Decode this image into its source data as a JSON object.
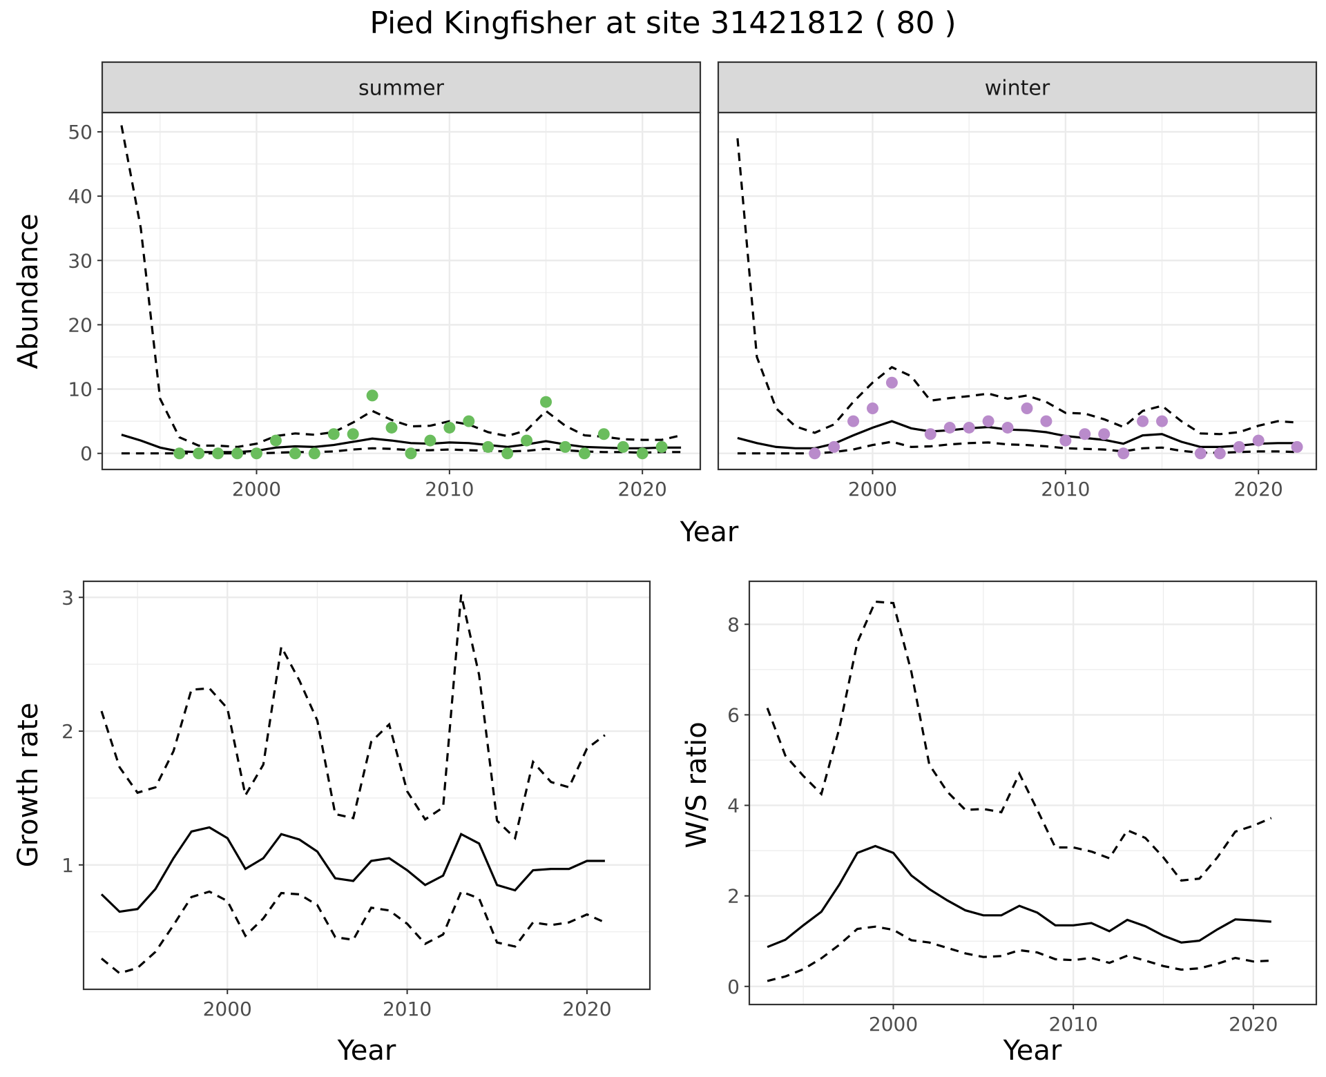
{
  "title": "Pied Kingfisher at site 31421812 ( 80 )",
  "colors": {
    "summer_points": "#6ABD5D",
    "winter_points": "#B98BCB",
    "line": "#000000",
    "strip_fill": "#D9D9D9",
    "grid": "#EBEBEB"
  },
  "chart_data": [
    {
      "id": "abundance",
      "type": "line",
      "facets": [
        "summer",
        "winter"
      ],
      "xlabel": "Year",
      "ylabel": "Abundance",
      "xlim": [
        1992,
        2023
      ],
      "ylim": [
        -2.5,
        53
      ],
      "x_ticks": [
        2000,
        2010,
        2020
      ],
      "y_ticks": [
        0,
        10,
        20,
        30,
        40,
        50
      ],
      "grid": true,
      "panels": [
        {
          "facet": "summer",
          "years": [
            1993,
            1994,
            1995,
            1996,
            1997,
            1998,
            1999,
            2000,
            2001,
            2002,
            2003,
            2004,
            2005,
            2006,
            2007,
            2008,
            2009,
            2010,
            2011,
            2012,
            2013,
            2014,
            2015,
            2016,
            2017,
            2018,
            2019,
            2020,
            2021,
            2022
          ],
          "estimate": [
            2.9,
            2.0,
            0.9,
            0.3,
            0.2,
            0.2,
            0.2,
            0.4,
            0.9,
            1.1,
            1.0,
            1.3,
            1.8,
            2.3,
            2.0,
            1.6,
            1.5,
            1.7,
            1.6,
            1.3,
            1.0,
            1.4,
            1.9,
            1.4,
            1.0,
            0.9,
            0.8,
            0.8,
            0.9,
            0.9
          ],
          "lower": [
            0.0,
            0.0,
            0.0,
            0.0,
            0.0,
            0.0,
            0.0,
            0.0,
            0.1,
            0.2,
            0.2,
            0.3,
            0.6,
            0.8,
            0.7,
            0.5,
            0.5,
            0.6,
            0.5,
            0.4,
            0.3,
            0.4,
            0.7,
            0.5,
            0.3,
            0.2,
            0.2,
            0.1,
            0.2,
            0.2
          ],
          "upper": [
            51.0,
            35.0,
            8.5,
            2.5,
            1.2,
            1.2,
            1.0,
            1.5,
            2.7,
            3.1,
            2.9,
            3.3,
            4.8,
            6.6,
            5.2,
            4.2,
            4.3,
            5.0,
            4.5,
            3.3,
            2.7,
            3.6,
            6.6,
            4.3,
            2.8,
            2.6,
            2.2,
            2.1,
            2.1,
            2.8
          ],
          "observed": [
            [
              1996,
              0
            ],
            [
              1997,
              0
            ],
            [
              1998,
              0
            ],
            [
              1999,
              0
            ],
            [
              2000,
              0
            ],
            [
              2001,
              2
            ],
            [
              2002,
              0
            ],
            [
              2003,
              0
            ],
            [
              2004,
              3
            ],
            [
              2005,
              3
            ],
            [
              2006,
              9
            ],
            [
              2007,
              4
            ],
            [
              2008,
              0
            ],
            [
              2009,
              2
            ],
            [
              2010,
              4
            ],
            [
              2011,
              5
            ],
            [
              2012,
              1
            ],
            [
              2013,
              0
            ],
            [
              2014,
              2
            ],
            [
              2015,
              8
            ],
            [
              2016,
              1
            ],
            [
              2017,
              0
            ],
            [
              2018,
              3
            ],
            [
              2019,
              1
            ],
            [
              2020,
              0
            ],
            [
              2021,
              1
            ]
          ]
        },
        {
          "facet": "winter",
          "years": [
            1993,
            1994,
            1995,
            1996,
            1997,
            1998,
            1999,
            2000,
            2001,
            2002,
            2003,
            2004,
            2005,
            2006,
            2007,
            2008,
            2009,
            2010,
            2011,
            2012,
            2013,
            2014,
            2015,
            2016,
            2017,
            2018,
            2019,
            2020,
            2021,
            2022
          ],
          "estimate": [
            2.4,
            1.6,
            1.0,
            0.8,
            0.8,
            1.5,
            2.8,
            4.0,
            5.0,
            3.9,
            3.4,
            3.6,
            3.9,
            4.1,
            3.7,
            3.6,
            3.3,
            2.7,
            2.4,
            2.1,
            1.5,
            2.8,
            3.0,
            1.8,
            1.0,
            1.0,
            1.2,
            1.5,
            1.6,
            1.6
          ],
          "lower": [
            0.0,
            0.0,
            0.0,
            0.0,
            0.0,
            0.2,
            0.6,
            1.3,
            1.8,
            1.0,
            1.1,
            1.4,
            1.6,
            1.7,
            1.4,
            1.3,
            1.1,
            0.8,
            0.7,
            0.6,
            0.3,
            0.8,
            0.9,
            0.4,
            0.1,
            0.1,
            0.2,
            0.3,
            0.3,
            0.2
          ],
          "upper": [
            49.0,
            15.0,
            7.0,
            4.2,
            3.2,
            4.5,
            8.0,
            11.0,
            13.4,
            12.0,
            8.2,
            8.6,
            8.9,
            9.3,
            8.5,
            9.0,
            8.0,
            6.3,
            6.2,
            5.3,
            4.1,
            6.6,
            7.4,
            5.0,
            3.1,
            3.0,
            3.3,
            4.3,
            5.0,
            4.8
          ],
          "observed": [
            [
              1997,
              0
            ],
            [
              1998,
              1
            ],
            [
              1999,
              5
            ],
            [
              2000,
              7
            ],
            [
              2001,
              11
            ],
            [
              2003,
              3
            ],
            [
              2004,
              4
            ],
            [
              2005,
              4
            ],
            [
              2006,
              5
            ],
            [
              2007,
              4
            ],
            [
              2008,
              7
            ],
            [
              2009,
              5
            ],
            [
              2010,
              2
            ],
            [
              2011,
              3
            ],
            [
              2012,
              3
            ],
            [
              2013,
              0
            ],
            [
              2014,
              5
            ],
            [
              2015,
              5
            ],
            [
              2017,
              0
            ],
            [
              2018,
              0
            ],
            [
              2019,
              1
            ],
            [
              2020,
              2
            ],
            [
              2022,
              1
            ]
          ]
        }
      ]
    },
    {
      "id": "growth",
      "type": "line",
      "xlabel": "Year",
      "ylabel": "Growth rate",
      "xlim": [
        1992,
        2023.5
      ],
      "ylim": [
        0.07,
        3.12
      ],
      "x_ticks": [
        2000,
        2010,
        2020
      ],
      "y_ticks": [
        1,
        2,
        3
      ],
      "grid": true,
      "years": [
        1993,
        1994,
        1995,
        1996,
        1997,
        1998,
        1999,
        2000,
        2001,
        2002,
        2003,
        2004,
        2005,
        2006,
        2007,
        2008,
        2009,
        2010,
        2011,
        2012,
        2013,
        2014,
        2015,
        2016,
        2017,
        2018,
        2019,
        2020,
        2021
      ],
      "estimate": [
        0.78,
        0.65,
        0.67,
        0.82,
        1.05,
        1.25,
        1.28,
        1.2,
        0.97,
        1.05,
        1.23,
        1.19,
        1.1,
        0.9,
        0.88,
        1.03,
        1.05,
        0.96,
        0.85,
        0.92,
        1.23,
        1.16,
        0.85,
        0.81,
        0.96,
        0.97,
        0.97,
        1.03,
        1.03
      ],
      "lower": [
        0.3,
        0.19,
        0.23,
        0.35,
        0.55,
        0.76,
        0.8,
        0.73,
        0.47,
        0.6,
        0.79,
        0.78,
        0.7,
        0.46,
        0.44,
        0.68,
        0.66,
        0.56,
        0.41,
        0.48,
        0.8,
        0.75,
        0.42,
        0.39,
        0.57,
        0.55,
        0.57,
        0.63,
        0.57
      ],
      "upper": [
        2.15,
        1.73,
        1.54,
        1.58,
        1.85,
        2.31,
        2.32,
        2.17,
        1.52,
        1.75,
        2.63,
        2.38,
        2.08,
        1.38,
        1.35,
        1.92,
        2.05,
        1.55,
        1.34,
        1.43,
        3.02,
        2.42,
        1.33,
        1.2,
        1.77,
        1.62,
        1.58,
        1.87,
        1.97
      ]
    },
    {
      "id": "ws_ratio",
      "type": "line",
      "xlabel": "Year",
      "ylabel": "W/S ratio",
      "xlim": [
        1992,
        2023.5
      ],
      "ylim": [
        -0.4,
        8.95
      ],
      "x_ticks": [
        2000,
        2010,
        2020
      ],
      "y_ticks": [
        0,
        2,
        4,
        6,
        8
      ],
      "grid": true,
      "years": [
        1993,
        1994,
        1995,
        1996,
        1997,
        1998,
        1999,
        2000,
        2001,
        2002,
        2003,
        2004,
        2005,
        2006,
        2007,
        2008,
        2009,
        2010,
        2011,
        2012,
        2013,
        2014,
        2015,
        2016,
        2017,
        2018,
        2019,
        2020,
        2021
      ],
      "estimate": [
        0.87,
        1.03,
        1.35,
        1.65,
        2.25,
        2.95,
        3.1,
        2.95,
        2.45,
        2.15,
        1.9,
        1.68,
        1.57,
        1.57,
        1.78,
        1.63,
        1.35,
        1.35,
        1.4,
        1.22,
        1.47,
        1.33,
        1.12,
        0.97,
        1.01,
        1.26,
        1.48,
        1.46,
        1.43
      ],
      "lower": [
        0.12,
        0.22,
        0.38,
        0.62,
        0.92,
        1.27,
        1.32,
        1.25,
        1.02,
        0.97,
        0.85,
        0.73,
        0.65,
        0.67,
        0.8,
        0.75,
        0.6,
        0.58,
        0.63,
        0.52,
        0.68,
        0.57,
        0.45,
        0.37,
        0.4,
        0.5,
        0.63,
        0.55,
        0.57
      ],
      "upper": [
        6.15,
        5.1,
        4.65,
        4.25,
        5.7,
        7.6,
        8.5,
        8.47,
        6.95,
        4.9,
        4.3,
        3.9,
        3.92,
        3.85,
        4.7,
        3.9,
        3.07,
        3.07,
        2.98,
        2.83,
        3.45,
        3.28,
        2.85,
        2.34,
        2.38,
        2.85,
        3.42,
        3.55,
        3.72
      ]
    }
  ]
}
